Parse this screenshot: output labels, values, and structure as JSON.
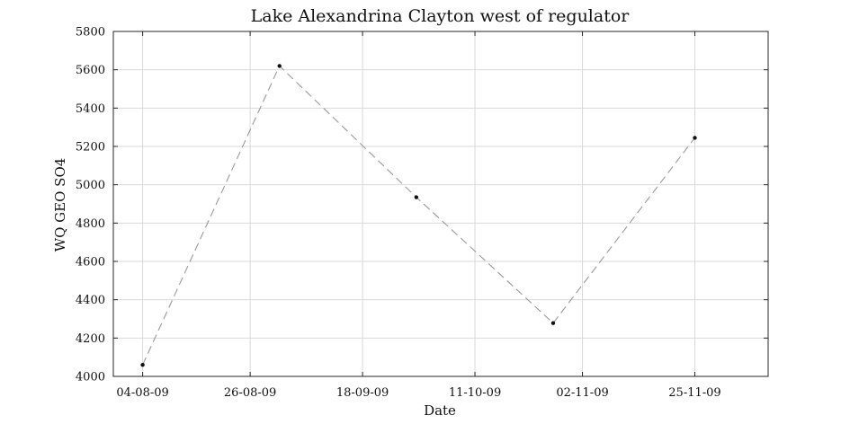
{
  "chart_data": {
    "type": "line",
    "title": "Lake Alexandrina Clayton west of regulator",
    "xlabel": "Date",
    "ylabel": "WQ GEO SO4",
    "xlim": [
      "2009-07-29",
      "2009-12-10"
    ],
    "ylim": [
      4000,
      5800
    ],
    "grid": true,
    "x_ticks": [
      {
        "date": "2009-08-04",
        "label": "04-08-09"
      },
      {
        "date": "2009-08-26",
        "label": "26-08-09"
      },
      {
        "date": "2009-09-18",
        "label": "18-09-09"
      },
      {
        "date": "2009-10-11",
        "label": "11-10-09"
      },
      {
        "date": "2009-11-02",
        "label": "02-11-09"
      },
      {
        "date": "2009-11-25",
        "label": "25-11-09"
      }
    ],
    "y_ticks": [
      4000,
      4200,
      4400,
      4600,
      4800,
      5000,
      5200,
      5400,
      5600,
      5800
    ],
    "series": [
      {
        "x": [
          "2009-08-04",
          "2009-09-01",
          "2009-09-29",
          "2009-10-27",
          "2009-11-25"
        ],
        "y": [
          4060,
          5620,
          4935,
          4278,
          5245
        ]
      }
    ]
  }
}
